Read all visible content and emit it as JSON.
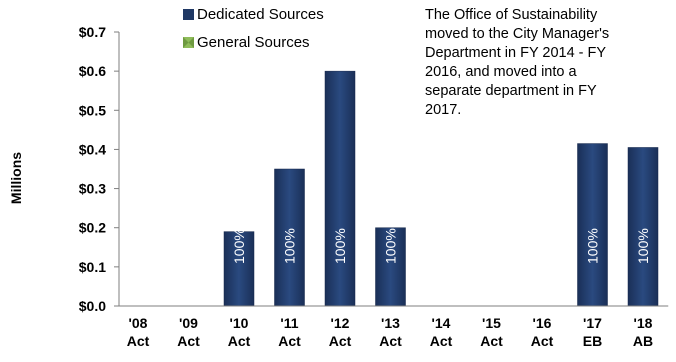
{
  "chart_data": {
    "type": "bar",
    "title": "",
    "xlabel": "",
    "ylabel": "Millions",
    "ylim": [
      0,
      0.7
    ],
    "y_ticks": [
      "$0.0",
      "$0.1",
      "$0.2",
      "$0.3",
      "$0.4",
      "$0.5",
      "$0.6",
      "$0.7"
    ],
    "y_tick_values": [
      0,
      0.1,
      0.2,
      0.3,
      0.4,
      0.5,
      0.6,
      0.7
    ],
    "grid": false,
    "legend_position": "top-left",
    "categories": [
      [
        "'08",
        "Act"
      ],
      [
        "'09",
        "Act"
      ],
      [
        "'10",
        "Act"
      ],
      [
        "'11",
        "Act"
      ],
      [
        "'12",
        "Act"
      ],
      [
        "'13",
        "Act"
      ],
      [
        "'14",
        "Act"
      ],
      [
        "'15",
        "Act"
      ],
      [
        "'16",
        "Act"
      ],
      [
        "'17",
        "EB"
      ],
      [
        "'18",
        "AB"
      ]
    ],
    "series": [
      {
        "name": "Dedicated Sources",
        "color": "#1F3864",
        "values": [
          0,
          0,
          0.19,
          0.35,
          0.6,
          0.2,
          0,
          0,
          0,
          0.415,
          0.405
        ],
        "data_labels": [
          "",
          "",
          "100%",
          "100%",
          "100%",
          "100%",
          "",
          "",
          "",
          "100%",
          "100%"
        ]
      },
      {
        "name": "General Sources",
        "color": "#8FBC5A",
        "values": [
          0,
          0,
          0,
          0,
          0,
          0,
          0,
          0,
          0,
          0,
          0
        ],
        "data_labels": [
          "",
          "",
          "",
          "",
          "",
          "",
          "",
          "",
          "",
          "",
          ""
        ]
      }
    ],
    "annotations": [
      "The Office of Sustainability",
      "moved to the City Manager's",
      "Department in FY 2014 - FY",
      "2016, and moved into a",
      "separate department in FY",
      "2017."
    ]
  }
}
